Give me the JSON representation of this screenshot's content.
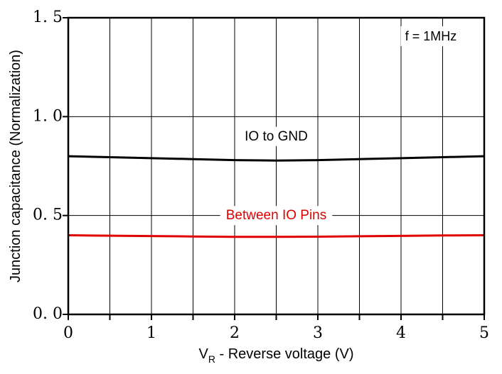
{
  "chart_data": {
    "type": "line",
    "xlabel_main": "V",
    "xlabel_sub": "R",
    "xlabel_rest": " - Reverse voltage (V)",
    "ylabel": "Junction capacitance (Normalization)",
    "annotation": "f = 1MHz",
    "xlim": [
      0,
      5
    ],
    "ylim": [
      0,
      1.5
    ],
    "grid": true,
    "x_ticks": [
      0,
      1,
      2,
      3,
      4,
      5
    ],
    "x_tick_labels": [
      "0",
      "1",
      "2",
      "3",
      "4",
      "5"
    ],
    "y_ticks": [
      0,
      0.5,
      1.0,
      1.5
    ],
    "y_tick_labels": [
      "0. 0",
      "0. 5",
      "1. 0",
      "1. 5"
    ],
    "series": [
      {
        "name": "IO to GND",
        "color": "#000000",
        "x": [
          0,
          0.5,
          1,
          1.5,
          2,
          2.5,
          3,
          3.5,
          4,
          4.5,
          5
        ],
        "y": [
          0.8,
          0.795,
          0.79,
          0.785,
          0.78,
          0.778,
          0.78,
          0.785,
          0.79,
          0.795,
          0.8
        ],
        "label_x": 2.5,
        "label_y": 0.88
      },
      {
        "name": "Between IO Pins",
        "color": "#e00000",
        "x": [
          0,
          0.5,
          1,
          1.5,
          2,
          2.5,
          3,
          3.5,
          4,
          4.5,
          5
        ],
        "y": [
          0.4,
          0.398,
          0.396,
          0.394,
          0.392,
          0.392,
          0.393,
          0.395,
          0.397,
          0.399,
          0.4
        ],
        "label_x": 2.5,
        "label_y": 0.48
      }
    ]
  }
}
